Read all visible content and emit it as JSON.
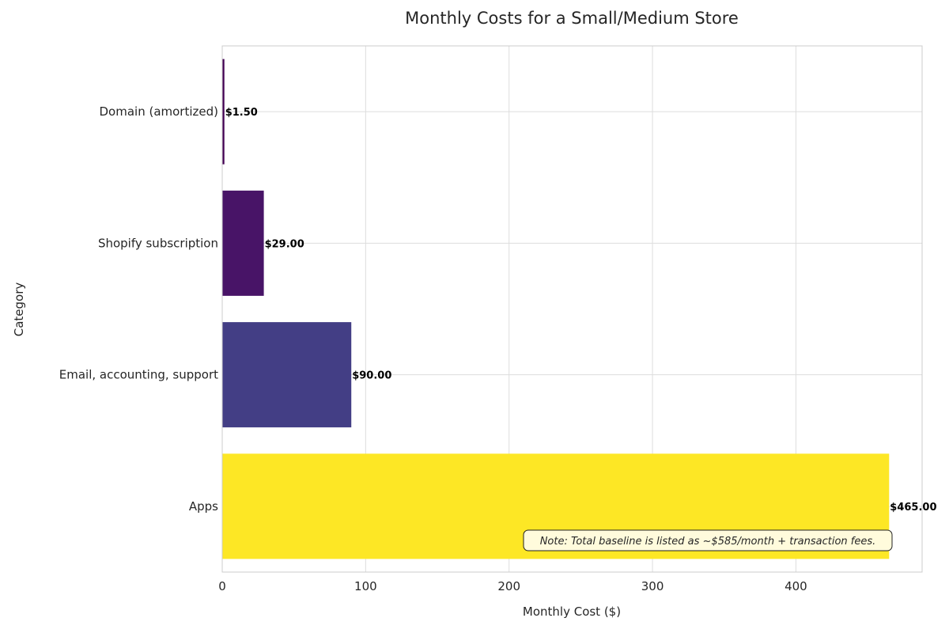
{
  "chart_data": {
    "type": "bar",
    "orientation": "horizontal",
    "title": "Monthly Costs for a Small/Medium Store",
    "xlabel": "Monthly Cost ($)",
    "ylabel": "Category",
    "categories": [
      "Apps",
      "Email, accounting, support",
      "Shopify subscription",
      "Domain (amortized)"
    ],
    "values": [
      465.0,
      90.0,
      29.0,
      1.5
    ],
    "value_labels": [
      "$465.00",
      "$90.00",
      "$29.00",
      "$1.50"
    ],
    "colors": [
      "#fde725",
      "#433e85",
      "#481467",
      "#440154"
    ],
    "xlim": [
      0,
      488
    ],
    "xticks": [
      0,
      100,
      200,
      300,
      400
    ],
    "grid": true,
    "note": "Note: Total baseline is listed as ~$585/month + transaction fees."
  }
}
